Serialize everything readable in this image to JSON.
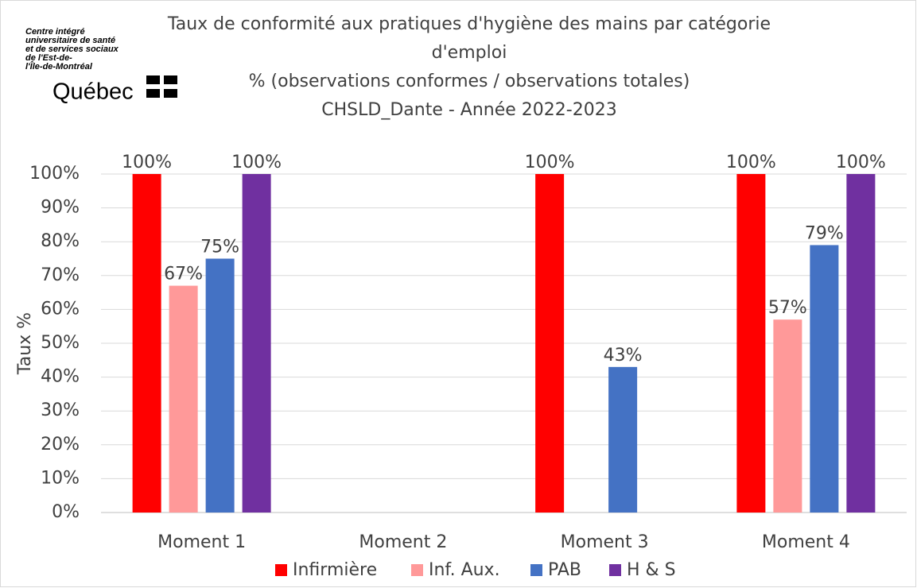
{
  "chart_data": {
    "type": "bar",
    "title": [
      "Taux de conformité aux pratiques d'hygiène des mains par catégorie",
      "d'emploi"
    ],
    "subtitle": [
      "% (observations conformes / observations totales)",
      "CHSLD_Dante - Année 2022-2023"
    ],
    "logo": {
      "lines": [
        "Centre intégré",
        "universitaire de santé",
        "et de services sociaux",
        "de l'Est-de-",
        "l'Île-de-Montréal"
      ],
      "brand": "Québec"
    },
    "y_label": "Taux %",
    "categories": [
      "Moment 1",
      "Moment 2",
      "Moment 3",
      "Moment 4"
    ],
    "series": [
      {
        "name": "Infirmière",
        "color": "#ff0000",
        "values": [
          100,
          null,
          100,
          100
        ],
        "value_labels": [
          "100%",
          null,
          "100%",
          "100%"
        ]
      },
      {
        "name": "Inf. Aux.",
        "color": "#ff9999",
        "values": [
          67,
          null,
          null,
          57
        ],
        "value_labels": [
          "67%",
          null,
          null,
          "57%"
        ]
      },
      {
        "name": "PAB",
        "color": "#4472c4",
        "values": [
          75,
          null,
          43,
          79
        ],
        "value_labels": [
          "75%",
          null,
          "43%",
          "79%"
        ]
      },
      {
        "name": "H & S",
        "color": "#7030a0",
        "values": [
          100,
          null,
          null,
          100
        ],
        "value_labels": [
          "100%",
          null,
          null,
          "100%"
        ]
      }
    ],
    "ylim": [
      0,
      100
    ],
    "yticks": [
      {
        "value": 0,
        "label": "0%"
      },
      {
        "value": 10,
        "label": "10%"
      },
      {
        "value": 20,
        "label": "20%"
      },
      {
        "value": 30,
        "label": "30%"
      },
      {
        "value": 40,
        "label": "40%"
      },
      {
        "value": 50,
        "label": "50%"
      },
      {
        "value": 60,
        "label": "60%"
      },
      {
        "value": 70,
        "label": "70%"
      },
      {
        "value": 80,
        "label": "80%"
      },
      {
        "value": 90,
        "label": "90%"
      },
      {
        "value": 100,
        "label": "100%"
      }
    ],
    "grid": true,
    "legend": "bottom"
  }
}
